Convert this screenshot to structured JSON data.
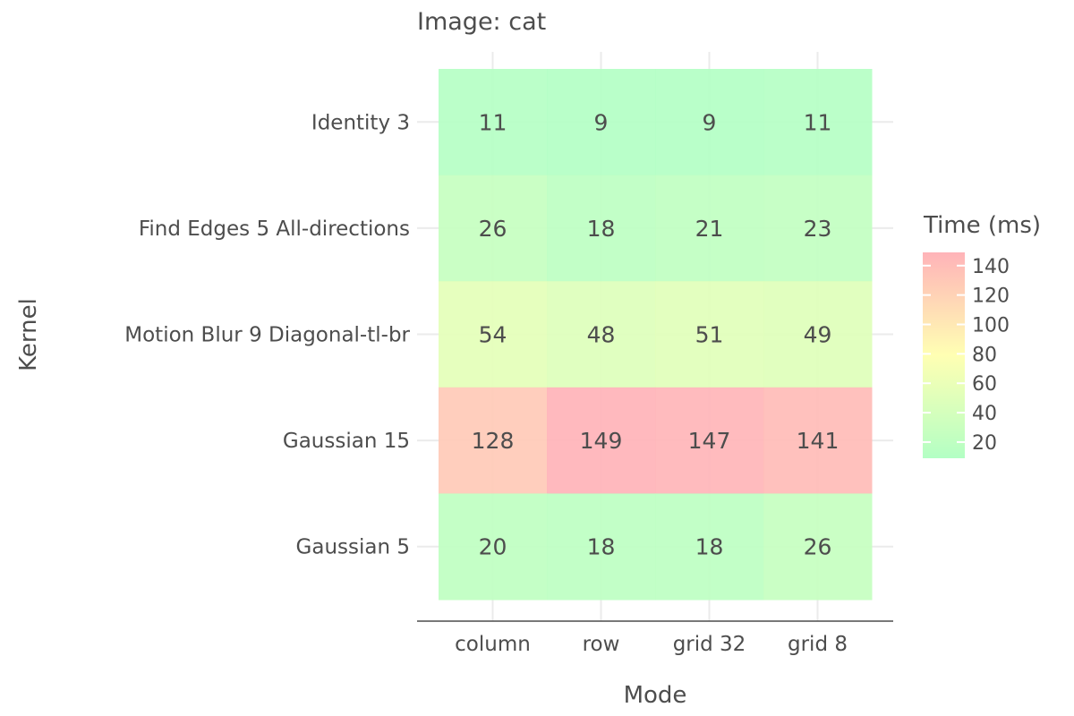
{
  "chart_data": {
    "type": "heatmap",
    "title": "Image: cat",
    "xlabel": "Mode",
    "ylabel": "Kernel",
    "x_categories": [
      "column",
      "row",
      "grid 32",
      "grid 8"
    ],
    "y_categories": [
      "Identity 3",
      "Find Edges 5 All-directions",
      "Motion Blur 9 Diagonal-tl-br",
      "Gaussian 15",
      "Gaussian 5"
    ],
    "values": [
      [
        11,
        9,
        9,
        11
      ],
      [
        26,
        18,
        21,
        23
      ],
      [
        54,
        48,
        51,
        49
      ],
      [
        128,
        149,
        147,
        141
      ],
      [
        20,
        18,
        18,
        26
      ]
    ],
    "legend": {
      "title": "Time (ms)",
      "ticks": [
        20,
        40,
        60,
        80,
        100,
        120,
        140
      ],
      "range": [
        9,
        149
      ],
      "placement": "right"
    },
    "color_scale": [
      "#b3ffc4",
      "#ffffb3",
      "#ffb3b8"
    ],
    "grid": true
  }
}
